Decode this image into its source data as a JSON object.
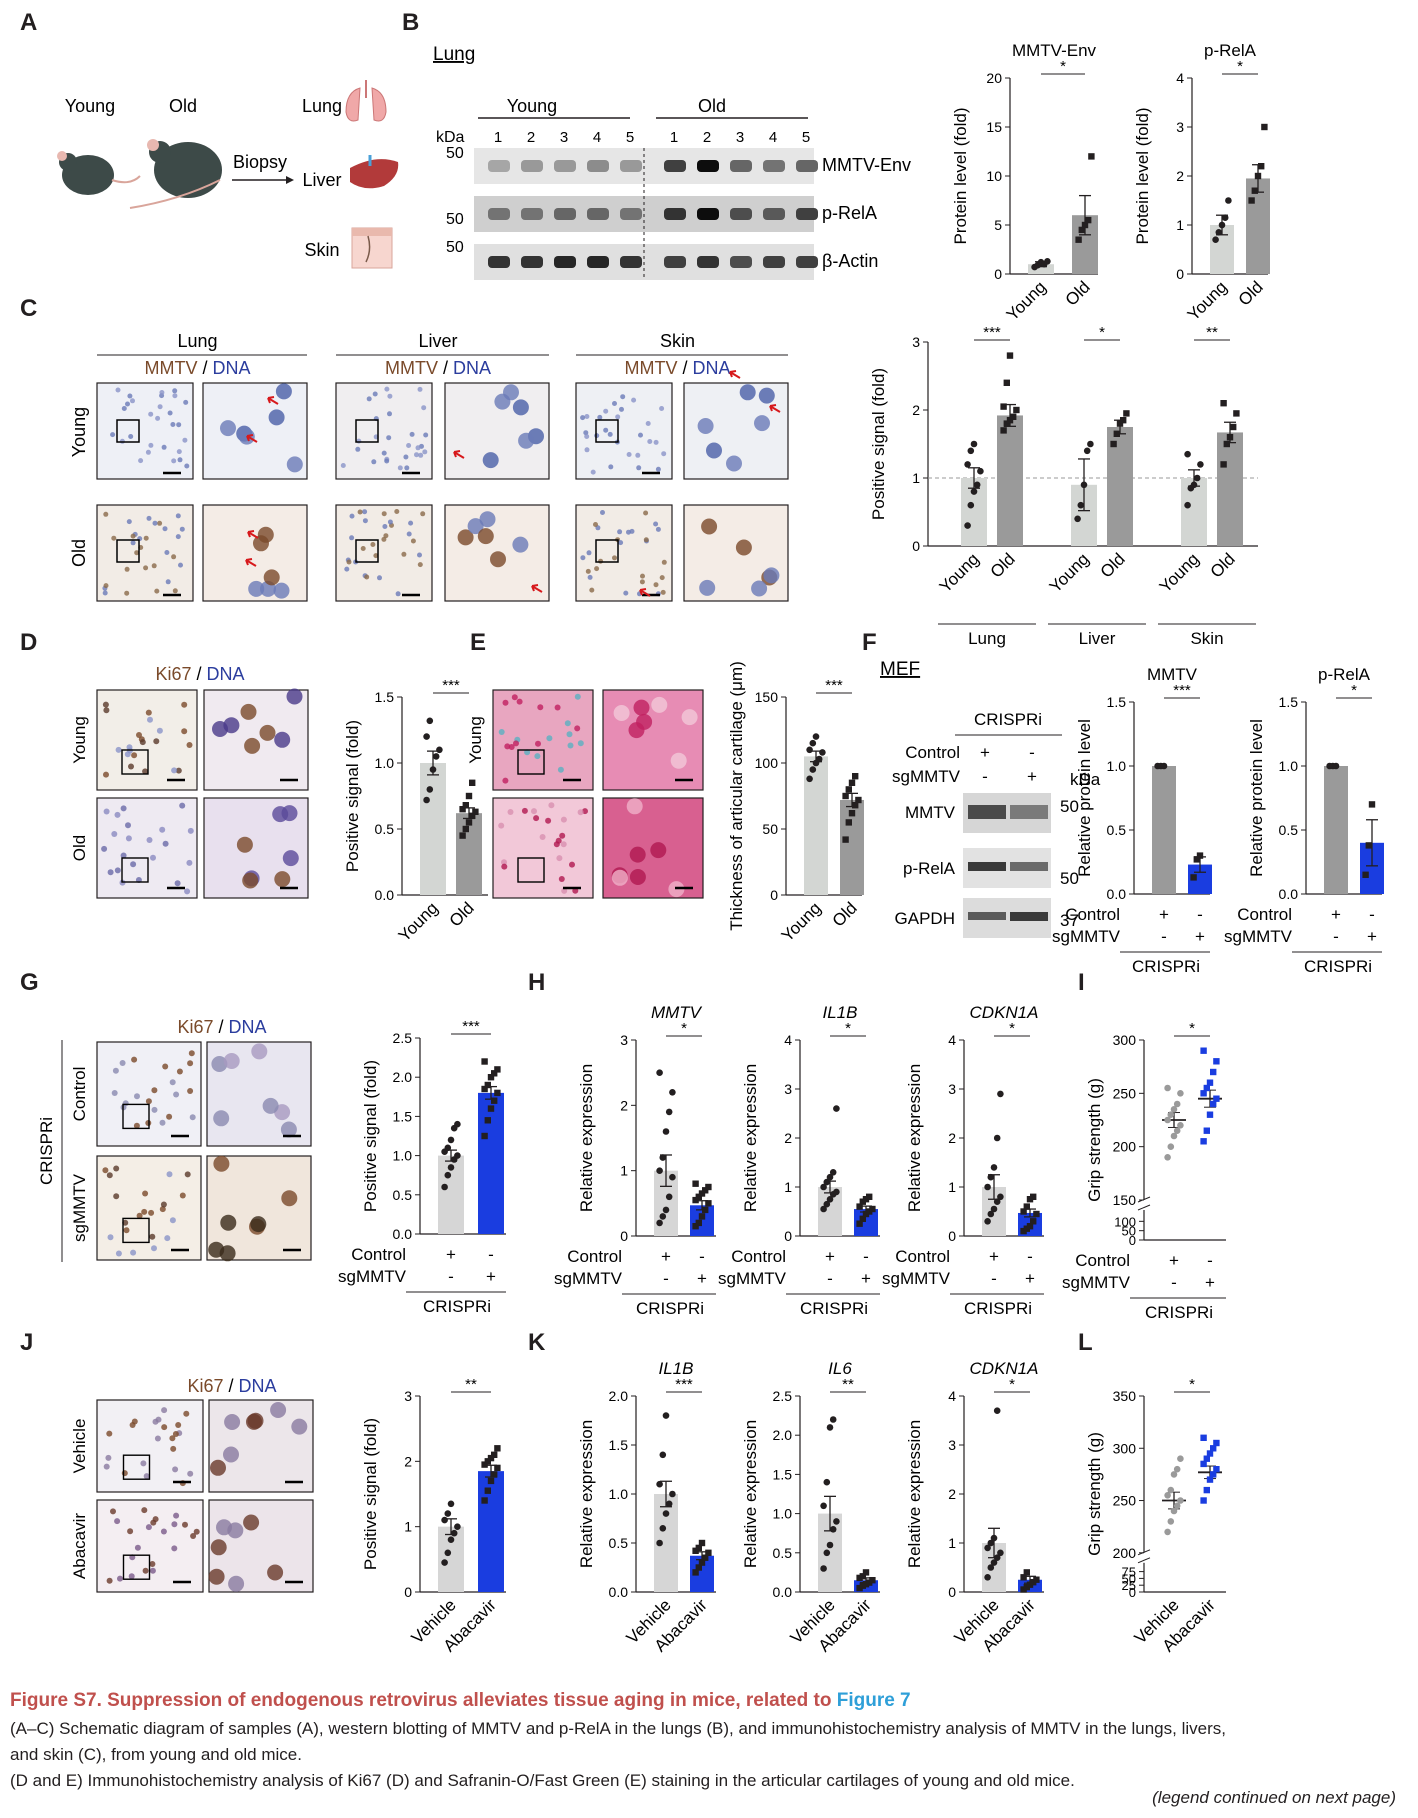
{
  "panel_letters": {
    "A": "A",
    "B": "B",
    "C": "C",
    "D": "D",
    "E": "E",
    "F": "F",
    "G": "G",
    "H": "H",
    "I": "I",
    "J": "J",
    "K": "K",
    "L": "L"
  },
  "panel_a": {
    "young": "Young",
    "old": "Old",
    "biopsy": "Biopsy",
    "arrow": "→",
    "lung": "Lung",
    "liver": "Liver",
    "skin": "Skin"
  },
  "panel_b_blot": {
    "tissue": "Lung",
    "kda": "kDa",
    "young": "Young",
    "old": "Old",
    "lanes": [
      "1",
      "2",
      "3",
      "4",
      "5",
      "1",
      "2",
      "3",
      "4",
      "5"
    ],
    "markers": [
      "50",
      "50",
      "50"
    ],
    "bands": [
      "MMTV-Env",
      "p-RelA",
      "β-Actin"
    ]
  },
  "panel_c_images": {
    "tissues": [
      "Lung",
      "Liver",
      "Skin"
    ],
    "stain_a": "MMTV",
    "sep": "/",
    "stain_b": "DNA",
    "young": "Young",
    "old": "Old",
    "group_labels": [
      "Lung",
      "Liver",
      "Skin"
    ]
  },
  "panel_d_images": {
    "stain_a": "Ki67",
    "sep": "/",
    "stain_b": "DNA",
    "young": "Young",
    "old": "Old"
  },
  "panel_e_images": {
    "young": "Young",
    "old": "Old"
  },
  "panel_f_blot": {
    "title": "MEF",
    "crispri": "CRISPRi",
    "row1": "Control",
    "row2": "sgMMTV",
    "row1_signs": [
      "+",
      "-"
    ],
    "row2_signs": [
      "-",
      "+"
    ],
    "kda": "kDa",
    "bands": [
      "MMTV",
      "p-RelA",
      "GAPDH"
    ],
    "markers": [
      "50",
      "50",
      "37"
    ]
  },
  "panel_g_images": {
    "stain_a": "Ki67",
    "sep": "/",
    "stain_b": "DNA",
    "group": "CRISPRi",
    "control": "Control",
    "sg": "sgMMTV"
  },
  "panel_j_images": {
    "stain_a": "Ki67",
    "sep": "/",
    "stain_b": "DNA",
    "vehicle": "Vehicle",
    "abacavir": "Abacavir"
  },
  "colors": {
    "young_bar": "#d3d6d3",
    "old_bar": "#9a9a9a",
    "control_bar": "#d6d6d6",
    "treated_bar": "#1a3de0",
    "blue_point": "#1a3de0",
    "gray_point": "#9a9a9a",
    "arrow_red": "#d7191c",
    "dna_blue": "#2b3d9e",
    "mmtv_brown": "#7a4a2a"
  },
  "chart_data": [
    {
      "id": "B1",
      "type": "bar",
      "title": "MMTV-Env",
      "ylabel": "Protein level (fold)",
      "categories": [
        "Young",
        "Old"
      ],
      "values": [
        1.0,
        6.0
      ],
      "errors": [
        0.25,
        2.0
      ],
      "ylim": [
        0,
        20
      ],
      "yticks": [
        0,
        5,
        10,
        15,
        20
      ],
      "significance": "*",
      "points": [
        [
          0.7,
          0.9,
          1.2,
          1.0,
          1.3
        ],
        [
          3.5,
          4.5,
          5.0,
          5.5,
          12.0
        ]
      ]
    },
    {
      "id": "B2",
      "type": "bar",
      "title": "p-RelA",
      "ylabel": "Protein level (fold)",
      "categories": [
        "Young",
        "Old"
      ],
      "values": [
        1.0,
        1.95
      ],
      "errors": [
        0.2,
        0.28
      ],
      "ylim": [
        0,
        4
      ],
      "yticks": [
        0,
        1,
        2,
        3,
        4
      ],
      "significance": "*",
      "points": [
        [
          0.7,
          0.85,
          1.0,
          1.15,
          1.5
        ],
        [
          1.5,
          1.7,
          2.0,
          2.2,
          3.0
        ]
      ]
    },
    {
      "id": "C",
      "type": "bar",
      "ylabel": "Positive signal (fold)",
      "categories": [
        "Young",
        "Old",
        "Young",
        "Old",
        "Young",
        "Old"
      ],
      "groups": [
        "Lung",
        "Liver",
        "Skin"
      ],
      "values": [
        1.0,
        1.92,
        0.9,
        1.75,
        1.0,
        1.67
      ],
      "errors": [
        0.15,
        0.16,
        0.38,
        0.1,
        0.12,
        0.15
      ],
      "ylim": [
        0,
        3
      ],
      "yticks": [
        0,
        1,
        2,
        3
      ],
      "significance": [
        "***",
        "*",
        "**"
      ],
      "reference_line": 1,
      "points": [
        [
          0.3,
          0.6,
          0.8,
          0.9,
          1.1,
          1.2,
          1.4,
          1.5
        ],
        [
          1.7,
          1.8,
          1.85,
          1.9,
          2.0,
          2.05,
          2.4,
          2.8
        ],
        [
          0.4,
          0.6,
          0.9,
          1.4,
          1.5
        ],
        [
          1.5,
          1.65,
          1.8,
          1.85,
          1.95
        ],
        [
          0.6,
          0.85,
          0.9,
          1.0,
          1.2,
          1.35
        ],
        [
          1.2,
          1.5,
          1.6,
          1.75,
          1.95,
          2.1
        ]
      ]
    },
    {
      "id": "D",
      "type": "bar",
      "ylabel": "Positive signal (fold)",
      "categories": [
        "Young",
        "Old"
      ],
      "values": [
        1.0,
        0.62
      ],
      "errors": [
        0.09,
        0.04
      ],
      "ylim": [
        0,
        1.5
      ],
      "yticks": [
        0.0,
        0.5,
        1.0,
        1.5
      ],
      "significance": "***",
      "points": [
        [
          0.72,
          0.8,
          0.95,
          1.05,
          1.1,
          1.2,
          1.32
        ],
        [
          0.45,
          0.5,
          0.55,
          0.6,
          0.63,
          0.65,
          0.68,
          0.75,
          0.85
        ]
      ]
    },
    {
      "id": "E",
      "type": "bar",
      "ylabel": "Thickness of articular cartilage  (μm)",
      "categories": [
        "Young",
        "Old"
      ],
      "values": [
        105,
        72
      ],
      "errors": [
        4,
        5
      ],
      "ylim": [
        0,
        150
      ],
      "yticks": [
        0,
        50,
        100,
        150
      ],
      "significance": "***",
      "points": [
        [
          88,
          95,
          100,
          103,
          108,
          110,
          115,
          120
        ],
        [
          42,
          55,
          62,
          68,
          72,
          75,
          80,
          85,
          90
        ]
      ]
    },
    {
      "id": "F1",
      "type": "bar",
      "title": "MMTV",
      "ylabel": "Relative protein level",
      "categories": [
        "Control",
        "sgMMTV"
      ],
      "values": [
        1.0,
        0.23
      ],
      "errors": [
        0,
        0.06
      ],
      "ylim": [
        0,
        1.5
      ],
      "yticks": [
        0.0,
        0.5,
        1.0,
        1.5
      ],
      "significance": "***",
      "row1": [
        "+",
        "-"
      ],
      "row2": [
        "-",
        "+"
      ],
      "group": "CRISPRi",
      "points": [
        [
          1.0,
          1.0,
          1.0
        ],
        [
          0.13,
          0.27,
          0.3
        ]
      ]
    },
    {
      "id": "F2",
      "type": "bar",
      "title": "p-RelA",
      "ylabel": "Relative protein level",
      "categories": [
        "Control",
        "sgMMTV"
      ],
      "values": [
        1.0,
        0.4
      ],
      "errors": [
        0,
        0.18
      ],
      "ylim": [
        0,
        1.5
      ],
      "yticks": [
        0.0,
        0.5,
        1.0,
        1.5
      ],
      "significance": "*",
      "row1": [
        "+",
        "-"
      ],
      "row2": [
        "-",
        "+"
      ],
      "group": "CRISPRi",
      "points": [
        [
          1.0,
          1.0,
          1.0
        ],
        [
          0.15,
          0.38,
          0.7
        ]
      ]
    },
    {
      "id": "G",
      "type": "bar",
      "ylabel": "Positive signal (fold)",
      "categories": [
        "Control",
        "sgMMTV"
      ],
      "values": [
        1.0,
        1.8
      ],
      "errors": [
        0.07,
        0.08
      ],
      "ylim": [
        0,
        2.5
      ],
      "yticks": [
        0.0,
        0.5,
        1.0,
        1.5,
        2.0,
        2.5
      ],
      "significance": "***",
      "row1": [
        "+",
        "-"
      ],
      "row2": [
        "-",
        "+"
      ],
      "group": "CRISPRi",
      "points": [
        [
          0.6,
          0.75,
          0.85,
          0.95,
          1.0,
          1.05,
          1.1,
          1.2,
          1.35,
          1.4
        ],
        [
          1.25,
          1.45,
          1.6,
          1.7,
          1.8,
          1.85,
          1.9,
          2.0,
          2.05,
          2.1,
          2.2
        ]
      ]
    },
    {
      "id": "H1",
      "type": "bar",
      "title": "MMTV",
      "title_italic": true,
      "ylabel": "Relative expression",
      "categories": [
        "Control",
        "sgMMTV"
      ],
      "values": [
        1.0,
        0.47
      ],
      "errors": [
        0.24,
        0.07
      ],
      "ylim": [
        0,
        3
      ],
      "yticks": [
        0,
        1,
        2,
        3
      ],
      "significance": "*",
      "row1": [
        "+",
        "-"
      ],
      "row2": [
        "-",
        "+"
      ],
      "group": "CRISPRi",
      "points": [
        [
          0.2,
          0.3,
          0.4,
          0.6,
          0.9,
          1.0,
          1.2,
          1.6,
          1.9,
          2.2,
          2.5
        ],
        [
          0.15,
          0.2,
          0.3,
          0.4,
          0.5,
          0.55,
          0.6,
          0.65,
          0.7,
          0.75,
          0.8
        ]
      ]
    },
    {
      "id": "H2",
      "type": "bar",
      "title": "IL1B",
      "title_italic": true,
      "ylabel": "Relative expression",
      "categories": [
        "Control",
        "sgMMTV"
      ],
      "values": [
        1.0,
        0.55
      ],
      "errors": [
        0.12,
        0.06
      ],
      "ylim": [
        0,
        4
      ],
      "yticks": [
        0,
        1,
        2,
        3,
        4
      ],
      "significance": "*",
      "row1": [
        "+",
        "-"
      ],
      "row2": [
        "-",
        "+"
      ],
      "group": "CRISPRi",
      "points": [
        [
          0.55,
          0.65,
          0.75,
          0.85,
          0.9,
          1.0,
          1.1,
          1.2,
          1.3,
          2.6
        ],
        [
          0.25,
          0.35,
          0.45,
          0.5,
          0.55,
          0.6,
          0.7,
          0.75,
          0.8
        ]
      ]
    },
    {
      "id": "H3",
      "type": "bar",
      "title": "CDKN1A",
      "title_italic": true,
      "ylabel": "Relative expression",
      "categories": [
        "Control",
        "sgMMTV"
      ],
      "values": [
        1.0,
        0.47
      ],
      "errors": [
        0.25,
        0.08
      ],
      "ylim": [
        0,
        4
      ],
      "yticks": [
        0,
        1,
        2,
        3,
        4
      ],
      "significance": "*",
      "row1": [
        "+",
        "-"
      ],
      "row2": [
        "-",
        "+"
      ],
      "group": "CRISPRi",
      "points": [
        [
          0.3,
          0.45,
          0.55,
          0.7,
          0.8,
          1.0,
          1.2,
          1.4,
          2.0,
          2.9
        ],
        [
          0.1,
          0.15,
          0.2,
          0.3,
          0.45,
          0.5,
          0.6,
          0.75,
          0.8
        ]
      ]
    },
    {
      "id": "I",
      "type": "scatter",
      "ylabel": "Grip strength (g)",
      "categories": [
        "Control",
        "sgMMTV"
      ],
      "means": [
        225,
        245
      ],
      "errors": [
        7,
        8
      ],
      "ylim": [
        150,
        300
      ],
      "yticks": [
        150,
        200,
        250,
        300
      ],
      "yticks_broken": [
        0,
        50,
        100,
        150
      ],
      "significance": "*",
      "row1": [
        "+",
        "-"
      ],
      "row2": [
        "-",
        "+"
      ],
      "group": "CRISPRi",
      "points": [
        [
          190,
          200,
          210,
          215,
          220,
          225,
          230,
          235,
          240,
          250,
          255
        ],
        [
          205,
          215,
          230,
          240,
          245,
          250,
          255,
          260,
          270,
          280,
          290
        ]
      ]
    },
    {
      "id": "J",
      "type": "bar",
      "ylabel": "Positive signal (fold)",
      "categories": [
        "Vehicle",
        "Abacavir"
      ],
      "values": [
        1.0,
        1.85
      ],
      "errors": [
        0.12,
        0.09
      ],
      "ylim": [
        0,
        3.0
      ],
      "yticks": [
        0.0,
        1.0,
        2.0,
        3.0
      ],
      "significance": "**",
      "points": [
        [
          0.45,
          0.6,
          0.8,
          0.9,
          1.0,
          1.1,
          1.2,
          1.35
        ],
        [
          1.4,
          1.55,
          1.7,
          1.8,
          1.9,
          1.95,
          2.0,
          2.05,
          2.1,
          2.2
        ]
      ]
    },
    {
      "id": "K1",
      "type": "bar",
      "title": "IL1B",
      "title_italic": true,
      "ylabel": "Relative expression",
      "categories": [
        "Vehicle",
        "Abacavir"
      ],
      "values": [
        1.0,
        0.37
      ],
      "errors": [
        0.13,
        0.04
      ],
      "ylim": [
        0,
        2.0
      ],
      "yticks": [
        0.0,
        0.5,
        1.0,
        1.5,
        2.0
      ],
      "significance": "***",
      "points": [
        [
          0.5,
          0.65,
          0.8,
          0.9,
          1.0,
          1.1,
          1.4,
          1.8
        ],
        [
          0.2,
          0.25,
          0.3,
          0.35,
          0.4,
          0.42,
          0.45,
          0.5
        ]
      ]
    },
    {
      "id": "K2",
      "type": "bar",
      "title": "IL6",
      "title_italic": true,
      "ylabel": "Relative expression",
      "categories": [
        "Vehicle",
        "Abacavir"
      ],
      "values": [
        1.0,
        0.15
      ],
      "errors": [
        0.22,
        0.03
      ],
      "ylim": [
        0,
        2.5
      ],
      "yticks": [
        0.0,
        0.5,
        1.0,
        1.5,
        2.0,
        2.5
      ],
      "significance": "**",
      "points": [
        [
          0.3,
          0.5,
          0.6,
          0.8,
          0.9,
          1.1,
          1.4,
          2.1,
          2.2
        ],
        [
          0.05,
          0.08,
          0.1,
          0.12,
          0.15,
          0.18,
          0.2,
          0.25
        ]
      ]
    },
    {
      "id": "K3",
      "type": "bar",
      "title": "CDKN1A",
      "title_italic": true,
      "ylabel": "Relative expression",
      "categories": [
        "Vehicle",
        "Abacavir"
      ],
      "values": [
        1.0,
        0.25
      ],
      "errors": [
        0.3,
        0.07
      ],
      "ylim": [
        0,
        4
      ],
      "yticks": [
        0,
        1,
        2,
        3,
        4
      ],
      "significance": "*",
      "points": [
        [
          0.3,
          0.5,
          0.6,
          0.7,
          0.8,
          0.9,
          1.0,
          1.1,
          3.7
        ],
        [
          0.05,
          0.1,
          0.15,
          0.2,
          0.25,
          0.3,
          0.4
        ]
      ]
    },
    {
      "id": "L",
      "type": "scatter",
      "ylabel": "Grip strength (g)",
      "categories": [
        "Vehicle",
        "Abacavir"
      ],
      "means": [
        250,
        277
      ],
      "errors": [
        8,
        6
      ],
      "ylim": [
        200,
        350
      ],
      "yticks": [
        200,
        250,
        300,
        350
      ],
      "yticks_broken": [
        0,
        25,
        50,
        75,
        200
      ],
      "significance": "*",
      "points": [
        [
          220,
          230,
          240,
          245,
          250,
          255,
          260,
          275,
          280,
          290
        ],
        [
          250,
          260,
          270,
          275,
          280,
          285,
          290,
          295,
          300,
          305,
          310
        ]
      ]
    }
  ],
  "legend": {
    "title": "Figure S7.  Suppression of endogenous retrovirus alleviates tissue aging in mice, related to ",
    "title_ref": "Figure 7",
    "line1": "(A–C) Schematic diagram of samples (A), western blotting of MMTV and p-RelA in the lungs (B), and immunohistochemistry analysis of MMTV in the lungs, livers,",
    "line2": "and skin (C), from young and old mice.",
    "line3": "(D and E) Immunohistochemistry analysis of Ki67 (D) and Safranin-O/Fast Green (E) staining in the articular cartilages of young and old mice.",
    "continued": "(legend continued on next page)"
  }
}
